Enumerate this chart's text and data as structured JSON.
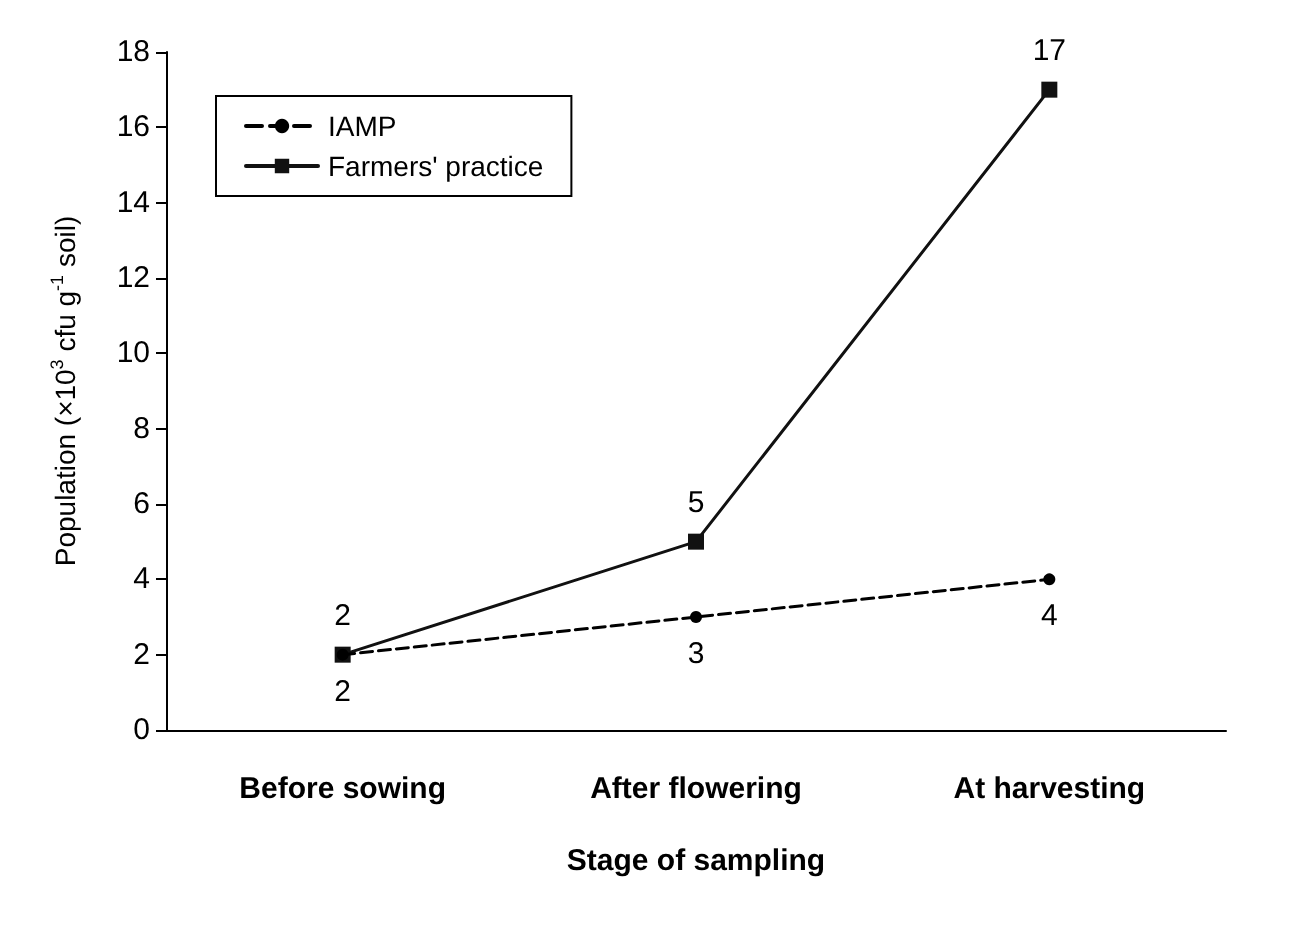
{
  "chart_data": {
    "type": "line",
    "xlabel": "Stage of sampling",
    "ylabel": "Population (×10$^{3}$ cfu g$^{-1}$ soil)",
    "categories": [
      "Before sowing",
      "After flowering",
      "At harvesting"
    ],
    "series": [
      {
        "name": "IAMP",
        "color": "#000000",
        "values": [
          2,
          3,
          4
        ],
        "marker": "circle",
        "line_style": "dashed"
      },
      {
        "name": "Farmers' practice",
        "color": "#111111",
        "values": [
          2,
          5,
          17
        ],
        "marker": "square",
        "line_style": "solid"
      }
    ],
    "ylim": [
      0,
      18
    ],
    "yticks": [
      0,
      2,
      4,
      6,
      8,
      10,
      12,
      14,
      16,
      18
    ],
    "grid": false,
    "legend": "top left",
    "data_labels": true
  }
}
